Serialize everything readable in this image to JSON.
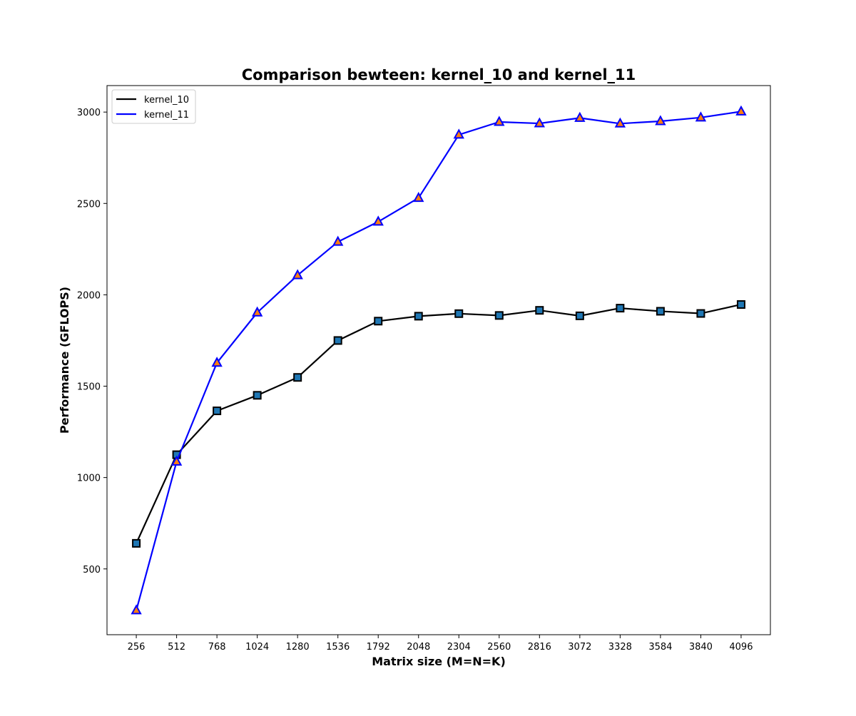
{
  "chart_data": {
    "type": "line",
    "title": "Comparison bewteen: kernel_10 and kernel_11",
    "xlabel": "Matrix size (M=N=K)",
    "ylabel": "Performance (GFLOPS)",
    "x": [
      256,
      512,
      768,
      1024,
      1280,
      1536,
      1792,
      2048,
      2304,
      2560,
      2816,
      3072,
      3328,
      3584,
      3840,
      4096
    ],
    "x_tick_labels": [
      "256",
      "512",
      "768",
      "1024",
      "1280",
      "1536",
      "1792",
      "2048",
      "2304",
      "2560",
      "2816",
      "3072",
      "3328",
      "3584",
      "3840",
      "4096"
    ],
    "y_ticks": [
      500,
      1000,
      1500,
      2000,
      2500,
      3000
    ],
    "y_tick_labels": [
      "500",
      "1000",
      "1500",
      "2000",
      "2500",
      "3000"
    ],
    "xlim": [
      70,
      4282
    ],
    "ylim": [
      140,
      3145
    ],
    "grid": false,
    "legend_position": "top-left",
    "series": [
      {
        "name": "kernel_10",
        "color": "#000000",
        "marker": "square",
        "marker_fill": "#1f77b4",
        "values": [
          640,
          1125,
          1365,
          1450,
          1548,
          1750,
          1856,
          1883,
          1897,
          1887,
          1915,
          1885,
          1927,
          1910,
          1898,
          1947
        ]
      },
      {
        "name": "kernel_11",
        "color": "#0000ff",
        "marker": "triangle",
        "marker_fill": "#ff7f0e",
        "values": [
          273,
          1087,
          1628,
          1903,
          2107,
          2290,
          2400,
          2530,
          2876,
          2946,
          2938,
          2968,
          2937,
          2950,
          2970,
          3003
        ]
      }
    ]
  }
}
